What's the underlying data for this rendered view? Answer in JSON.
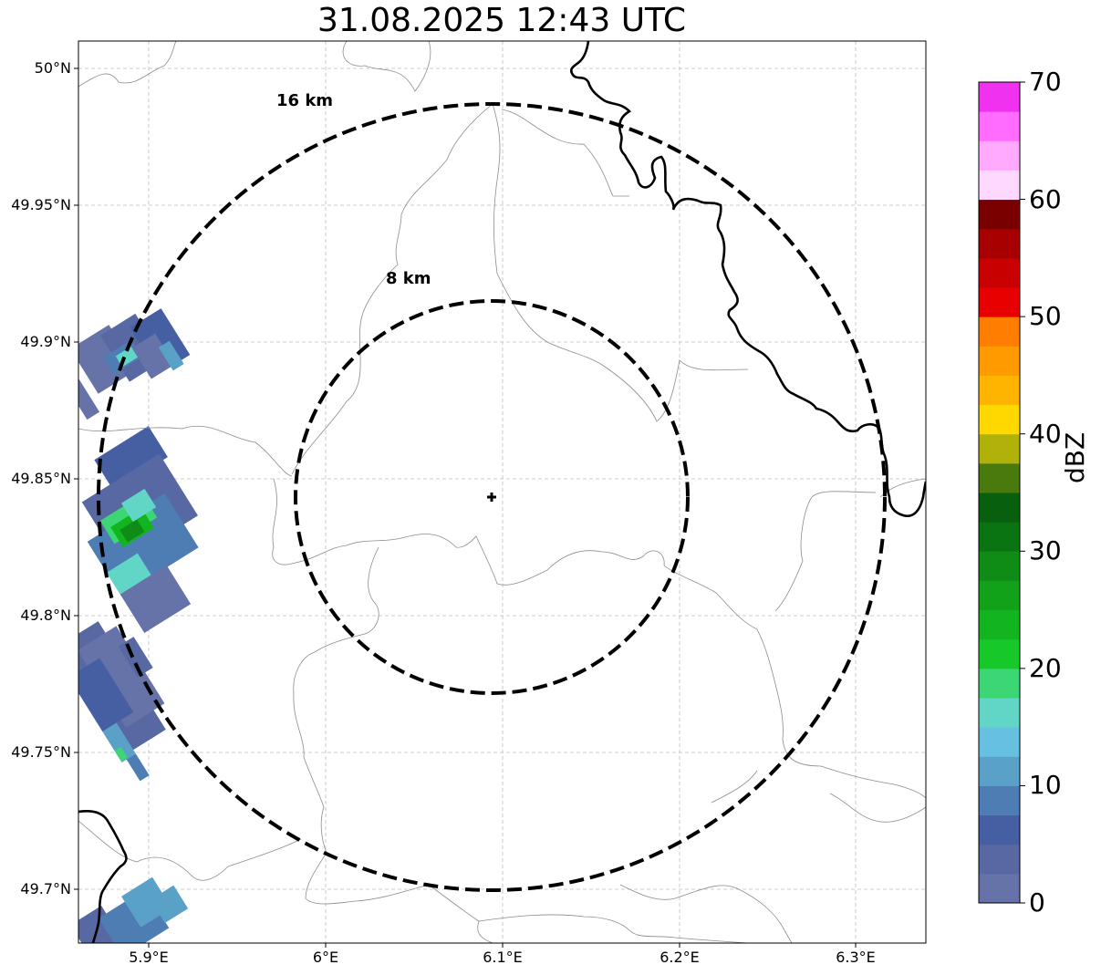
{
  "title": "31.08.2025 12:43 UTC",
  "lat_labels": [
    "50°N",
    "49.95°N",
    "49.9°N",
    "49.85°N",
    "49.8°N",
    "49.75°N",
    "49.7°N"
  ],
  "lon_labels": [
    "5.9°E",
    "6°E",
    "6.1°E",
    "6.2°E",
    "6.3°E"
  ],
  "rings": [
    {
      "label": "8 km",
      "radius_km": 8
    },
    {
      "label": "16 km",
      "radius_km": 16
    }
  ],
  "radar_site": {
    "lat": 49.843,
    "lon": 6.095
  },
  "colorbar": {
    "label": "dBZ",
    "ticks": [
      "0",
      "10",
      "20",
      "30",
      "40",
      "50",
      "60",
      "70"
    ],
    "colors": [
      "#6673a8",
      "#5768a3",
      "#465fa2",
      "#4d7db3",
      "#5aa1c8",
      "#66c1e0",
      "#62d6c6",
      "#3dd674",
      "#16c928",
      "#12b51f",
      "#11a21a",
      "#0e8c15",
      "#0b7412",
      "#08600e",
      "#4a7a0e",
      "#b0b10a",
      "#ffd800",
      "#ffb400",
      "#ff9a00",
      "#ff7d00",
      "#e80000",
      "#c80000",
      "#a80000",
      "#7a0000",
      "#ffd8ff",
      "#ffaaff",
      "#ff6cff",
      "#f032f0"
    ]
  }
}
